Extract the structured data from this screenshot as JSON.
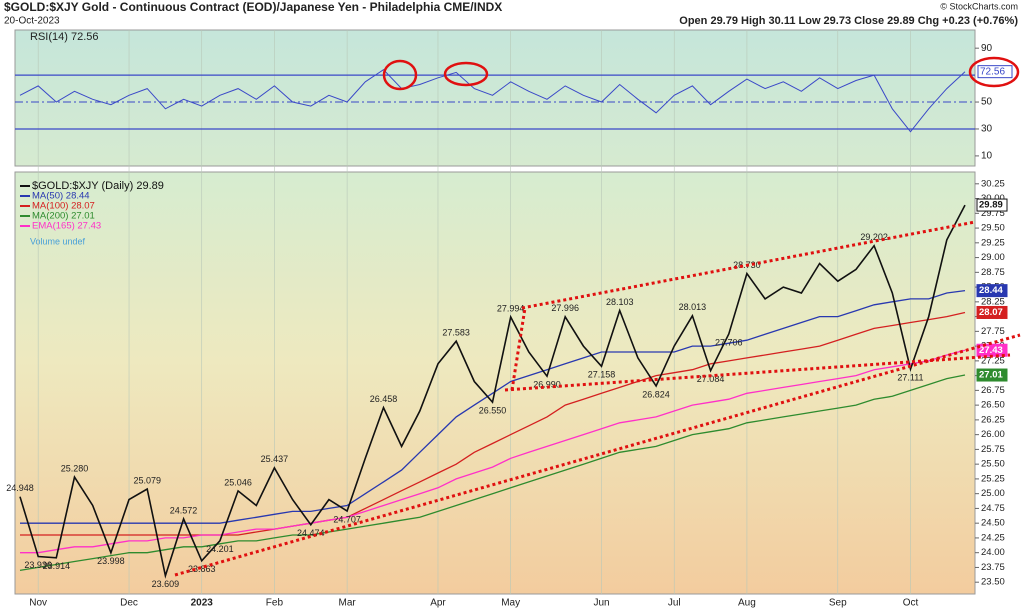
{
  "header": {
    "title": "$GOLD:$XJY Gold - Continuous Contract (EOD)/Japanese Yen - Philadelphia CME/INDX",
    "date": "20-Oct-2023",
    "quote": "Open 29.79 High 30.11 Low 29.73 Close 29.89 Chg +0.23 (+0.76%)",
    "watermark": "© StockCharts.com",
    "volume_note": "Volume undef"
  },
  "chart_data": [
    {
      "type": "line",
      "title": "RSI(14) 72.56",
      "color": "#3a48c8",
      "ylim": [
        2.5,
        103.5
      ],
      "yticks": [
        90,
        50,
        30,
        10
      ],
      "hlines": [
        70,
        30
      ],
      "midline": 50,
      "values": [
        55,
        62,
        50,
        58,
        52,
        48,
        55,
        60,
        45,
        52,
        47,
        55,
        60,
        52,
        62,
        50,
        47,
        55,
        50,
        65,
        74,
        60,
        63,
        68,
        72,
        60,
        55,
        65,
        58,
        52,
        62,
        55,
        50,
        63,
        52,
        42,
        55,
        62,
        48,
        58,
        67,
        60,
        65,
        58,
        68,
        60,
        66,
        70,
        45,
        28,
        45,
        60,
        72.56
      ]
    },
    {
      "type": "line",
      "ylim": [
        23.3,
        30.45
      ],
      "yticks": [
        {
          "value": 23.5,
          "label": "23.50"
        },
        {
          "value": 23.75,
          "label": "23.75"
        },
        {
          "value": 24,
          "label": "24.00"
        },
        {
          "value": 24.25,
          "label": "24.25"
        },
        {
          "value": 24.5,
          "label": "24.50"
        },
        {
          "value": 24.75,
          "label": "24.75"
        },
        {
          "value": 25,
          "label": "25.00"
        },
        {
          "value": 25.25,
          "label": "25.25"
        },
        {
          "value": 25.5,
          "label": "25.50"
        },
        {
          "value": 25.75,
          "label": "25.75"
        },
        {
          "value": 26,
          "label": "26.00"
        },
        {
          "value": 26.25,
          "label": "26.25"
        },
        {
          "value": 26.5,
          "label": "26.50"
        },
        {
          "value": 26.75,
          "label": "26.75"
        },
        {
          "value": 27,
          "label": "27.00"
        },
        {
          "value": 27.25,
          "label": "27.25"
        },
        {
          "value": 27.5,
          "label": "27.50"
        },
        {
          "value": 27.75,
          "label": "27.75"
        },
        {
          "value": 28,
          "label": "28.00"
        },
        {
          "value": 28.25,
          "label": "28.25"
        },
        {
          "value": 28.5,
          "label": "28.50"
        },
        {
          "value": 28.75,
          "label": "28.75"
        },
        {
          "value": 29,
          "label": "29.00"
        },
        {
          "value": 29.25,
          "label": "29.25"
        },
        {
          "value": 29.5,
          "label": "29.50"
        },
        {
          "value": 29.75,
          "label": "29.75"
        },
        {
          "value": 30,
          "label": "30.00"
        },
        {
          "value": 30.25,
          "label": "30.25"
        }
      ],
      "categories": [
        null,
        "Nov",
        null,
        null,
        null,
        null,
        "Dec",
        null,
        null,
        null,
        "2023",
        null,
        null,
        null,
        "Feb",
        null,
        null,
        null,
        "Mar",
        null,
        null,
        null,
        null,
        "Apr",
        null,
        null,
        null,
        "May",
        null,
        null,
        null,
        null,
        "Jun",
        null,
        null,
        null,
        "Jul",
        null,
        null,
        null,
        "Aug",
        null,
        null,
        null,
        null,
        "Sep",
        null,
        null,
        null,
        "Oct",
        null,
        null,
        null
      ],
      "series": [
        {
          "name": "$GOLD:$XJY (Daily) 29.89",
          "color": "#111111",
          "values": [
            24.948,
            23.936,
            23.914,
            25.28,
            24.8,
            23.998,
            24.9,
            25.079,
            23.609,
            24.572,
            23.863,
            24.201,
            25.046,
            24.8,
            25.437,
            24.9,
            24.474,
            24.9,
            24.707,
            25.6,
            26.458,
            25.8,
            26.4,
            27.2,
            27.583,
            26.9,
            26.55,
            27.994,
            27.4,
            26.99,
            27.996,
            27.5,
            27.158,
            28.103,
            27.3,
            26.824,
            27.5,
            28.013,
            27.084,
            27.706,
            28.73,
            28.3,
            28.5,
            28.4,
            28.9,
            28.6,
            28.8,
            29.202,
            28.4,
            27.111,
            28,
            29.3,
            29.89
          ],
          "value_labels": [
            "24.948",
            "23.936",
            "23.914",
            "25.280",
            null,
            "23.998",
            null,
            "25.079",
            "23.609",
            "24.572",
            "23.863",
            "24.201",
            "25.046",
            null,
            "25.437",
            null,
            "24.474",
            null,
            "24.707",
            null,
            "26.458",
            null,
            null,
            null,
            "27.583",
            null,
            "26.550",
            "27.994",
            null,
            "26.990",
            "27.996",
            null,
            "27.158",
            "28.103",
            null,
            "26.824",
            null,
            "28.013",
            "27.084",
            "27.706",
            "28.730",
            null,
            null,
            null,
            null,
            null,
            null,
            "29.202",
            null,
            "27.111",
            null,
            null,
            null
          ]
        },
        {
          "name": "MA(50) 28.44",
          "color": "#2838b0",
          "values": [
            24.5,
            24.5,
            24.5,
            24.5,
            24.5,
            24.5,
            24.5,
            24.5,
            24.5,
            24.5,
            24.5,
            24.5,
            24.55,
            24.6,
            24.65,
            24.7,
            24.7,
            24.75,
            24.8,
            25,
            25.2,
            25.4,
            25.7,
            26,
            26.3,
            26.5,
            26.7,
            26.9,
            27,
            27.1,
            27.2,
            27.3,
            27.4,
            27.4,
            27.4,
            27.4,
            27.4,
            27.5,
            27.5,
            27.55,
            27.6,
            27.7,
            27.8,
            27.9,
            28,
            28,
            28.1,
            28.2,
            28.25,
            28.3,
            28.3,
            28.4,
            28.44
          ]
        },
        {
          "name": "MA(100) 28.07",
          "color": "#d42020",
          "values": [
            24.3,
            24.3,
            24.3,
            24.3,
            24.3,
            24.3,
            24.3,
            24.3,
            24.3,
            24.3,
            24.3,
            24.3,
            24.3,
            24.35,
            24.4,
            24.45,
            24.5,
            24.55,
            24.6,
            24.75,
            24.9,
            25.05,
            25.2,
            25.35,
            25.5,
            25.7,
            25.85,
            26,
            26.15,
            26.3,
            26.5,
            26.6,
            26.7,
            26.8,
            26.9,
            27,
            27.05,
            27.1,
            27.2,
            27.25,
            27.3,
            27.35,
            27.4,
            27.45,
            27.5,
            27.6,
            27.7,
            27.8,
            27.85,
            27.9,
            27.95,
            28,
            28.07
          ]
        },
        {
          "name": "MA(200) 27.01",
          "color": "#2e8b2e",
          "values": [
            23.7,
            23.75,
            23.8,
            23.85,
            23.9,
            23.95,
            24,
            24,
            24.05,
            24.1,
            24.1,
            24.15,
            24.2,
            24.2,
            24.25,
            24.3,
            24.3,
            24.35,
            24.4,
            24.45,
            24.5,
            24.55,
            24.6,
            24.7,
            24.8,
            24.9,
            25,
            25.1,
            25.2,
            25.3,
            25.4,
            25.5,
            25.6,
            25.7,
            25.75,
            25.8,
            25.9,
            26,
            26.05,
            26.1,
            26.2,
            26.25,
            26.3,
            26.35,
            26.4,
            26.45,
            26.5,
            26.6,
            26.65,
            26.75,
            26.85,
            26.95,
            27.01
          ]
        },
        {
          "name": "EMA(165) 27.43",
          "color": "#ff30c8",
          "values": [
            24,
            24,
            24.05,
            24.1,
            24.1,
            24.15,
            24.2,
            24.2,
            24.25,
            24.25,
            24.3,
            24.3,
            24.35,
            24.4,
            24.4,
            24.45,
            24.5,
            24.55,
            24.6,
            24.7,
            24.8,
            24.9,
            25,
            25.1,
            25.25,
            25.35,
            25.45,
            25.6,
            25.7,
            25.8,
            25.9,
            26,
            26.1,
            26.2,
            26.25,
            26.3,
            26.4,
            26.5,
            26.55,
            26.6,
            26.7,
            26.75,
            26.8,
            26.85,
            26.9,
            26.95,
            27,
            27.1,
            27.15,
            27.2,
            27.25,
            27.35,
            27.43
          ]
        }
      ]
    }
  ]
}
